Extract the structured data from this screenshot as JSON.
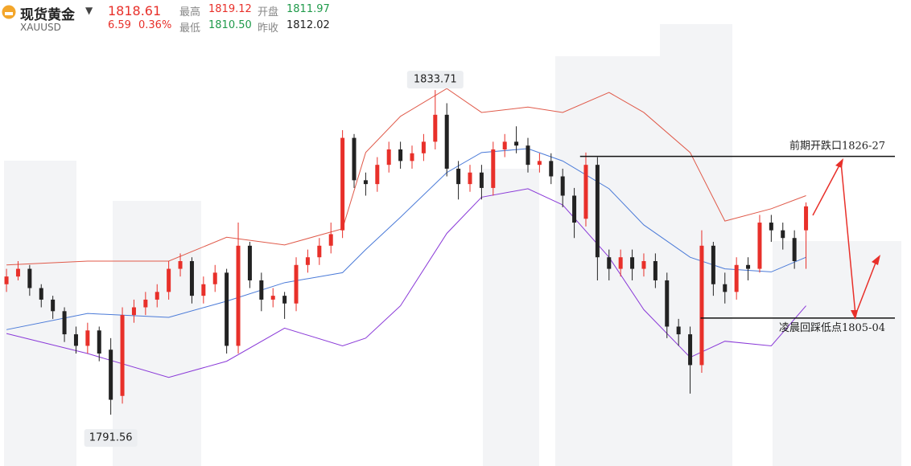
{
  "header": {
    "name": "现货黄金",
    "symbol": "XAUUSD",
    "price": "1818.61",
    "change": "6.59",
    "change_pct": "0.36%",
    "high_label": "最高",
    "high": "1819.12",
    "open_label": "开盘",
    "open": "1811.97",
    "low_label": "最低",
    "low": "1810.50",
    "prev_label": "昨收",
    "prev_close": "1812.02"
  },
  "chart_data": {
    "type": "candlestick",
    "up_color": "#e8302a",
    "down_color": "#222222",
    "xlim": [
      -0.56,
      78.06
    ],
    "ylim": [
      1784.9,
      1845.4
    ],
    "open": [
      1808.5,
      1809.5,
      1810.5,
      1808.0,
      1806.5,
      1805.0,
      1802.0,
      1800.5,
      1802.5,
      1800.0,
      1794.0,
      1804.5,
      1805.5,
      1806.5,
      1807.5,
      1810.5,
      1811.5,
      1807.0,
      1808.5,
      1810.0,
      1800.5,
      1813.5,
      1809.0,
      1806.5,
      1807.0,
      1806.0,
      1811.0,
      1812.0,
      1813.5,
      1815.5,
      1827.5,
      1822.0,
      1821.5,
      1824.0,
      1826.0,
      1824.5,
      1825.5,
      1827.0,
      1830.5,
      1823.5,
      1821.5,
      1823.0,
      1821.0,
      1826.0,
      1827.0,
      1826.5,
      1824.0,
      1824.5,
      1822.5,
      1820.0,
      1817.0,
      1824.0,
      1812.0,
      1810.5,
      1812.0,
      1810.5,
      1811.5,
      1809.0,
      1803.0,
      1802.0,
      1798.0,
      1813.5,
      1808.5,
      1807.5,
      1811.0,
      1810.5,
      1816.5,
      1815.5,
      1814.5,
      1815.5
    ],
    "high": [
      1810.5,
      1811.5,
      1811,
      1808.5,
      1807,
      1805.5,
      1803,
      1803.5,
      1803,
      1801.5,
      1805.5,
      1806.5,
      1807.5,
      1808.5,
      1811.5,
      1812.5,
      1812,
      1809.5,
      1811,
      1810.5,
      1816.5,
      1814,
      1810,
      1808,
      1807.5,
      1812,
      1813,
      1814.5,
      1816.5,
      1828.5,
      1828,
      1823,
      1825,
      1827,
      1827,
      1826.5,
      1828,
      1833.71,
      1832,
      1824.5,
      1824,
      1824,
      1827,
      1828,
      1829,
      1827.5,
      1825.5,
      1825.5,
      1823.5,
      1821,
      1825.6,
      1825,
      1813,
      1813,
      1813,
      1812.5,
      1812.5,
      1810,
      1804,
      1803,
      1815.5,
      1814,
      1810,
      1812,
      1812,
      1817.5,
      1817.5,
      1816.5,
      1815.5,
      1819.12
    ],
    "low": [
      1807.5,
      1809,
      1807,
      1805.5,
      1804,
      1801,
      1799.5,
      1799.5,
      1798.5,
      1791.56,
      1793,
      1803.5,
      1804.5,
      1805.5,
      1806.5,
      1809.5,
      1806,
      1806,
      1807.5,
      1799.5,
      1799.5,
      1808,
      1805,
      1805.5,
      1804,
      1805,
      1810,
      1811,
      1812.5,
      1814.5,
      1821,
      1820,
      1820.5,
      1823,
      1823.5,
      1823.5,
      1824.5,
      1826,
      1822.5,
      1819.5,
      1820.5,
      1819.5,
      1820,
      1825,
      1825.5,
      1823,
      1823,
      1821.5,
      1818.5,
      1814.5,
      1816,
      1809,
      1809,
      1809.5,
      1809,
      1809.5,
      1808,
      1801.5,
      1800.5,
      1794.3,
      1797,
      1807,
      1806,
      1806.5,
      1809,
      1810,
      1814,
      1813,
      1810.5,
      1810.5
    ],
    "close": [
      1809.5,
      1810.5,
      1808.0,
      1806.5,
      1805.0,
      1802.0,
      1800.5,
      1802.5,
      1799.5,
      1793.5,
      1804.5,
      1805.5,
      1806.5,
      1807.5,
      1810.5,
      1811.5,
      1807.0,
      1808.5,
      1810.0,
      1800.5,
      1813.5,
      1809.0,
      1806.5,
      1807.0,
      1806.0,
      1811.0,
      1812.0,
      1813.5,
      1815.0,
      1827.5,
      1822.0,
      1821.5,
      1824.0,
      1826.0,
      1824.5,
      1825.5,
      1827.0,
      1830.5,
      1823.5,
      1821.5,
      1823.0,
      1821.0,
      1826.0,
      1827.0,
      1826.5,
      1824.0,
      1824.5,
      1822.5,
      1820.0,
      1816.5,
      1824.0,
      1812.0,
      1810.5,
      1812.0,
      1810.5,
      1811.5,
      1809.0,
      1803.0,
      1802.0,
      1798.0,
      1813.5,
      1808.5,
      1807.5,
      1811.0,
      1810.5,
      1816.5,
      1815.5,
      1814.5,
      1811.5,
      1818.61
    ],
    "bands_x": [
      0,
      7,
      14,
      19,
      24,
      29,
      31,
      34,
      38,
      41,
      45,
      48,
      52,
      55,
      59,
      62,
      66,
      69
    ],
    "bands": [
      {
        "color": "#e05a4a",
        "values": [
          1811,
          1811.5,
          1811.5,
          1814.6,
          1813.6,
          1815.7,
          1825.6,
          1830.3,
          1833.9,
          1830.8,
          1831.5,
          1830.8,
          1833.4,
          1830.8,
          1825.6,
          1816.7,
          1818.3,
          1820
        ]
      },
      {
        "color": "#4a7ad8",
        "values": [
          1802.6,
          1804.7,
          1804.2,
          1806.3,
          1808.7,
          1810,
          1813,
          1817.2,
          1823,
          1825.6,
          1826.1,
          1824.5,
          1820.9,
          1816.2,
          1812,
          1810.5,
          1810.1,
          1812
        ]
      },
      {
        "color": "#8a3ad8",
        "values": [
          1802.1,
          1799.5,
          1796.4,
          1798.5,
          1802.8,
          1800.5,
          1801.5,
          1805.7,
          1815.1,
          1819.8,
          1820.9,
          1818.8,
          1812,
          1805.2,
          1799,
          1801.1,
          1800.5,
          1805.7
        ]
      }
    ],
    "annotations": [
      {
        "text": "前期开跌口1826-27",
        "value": 1825.1,
        "x_from": 49.5
      },
      {
        "text": "凌晨回踩低点1805-04",
        "value": 1804.1,
        "x_from": 59.9
      }
    ]
  }
}
